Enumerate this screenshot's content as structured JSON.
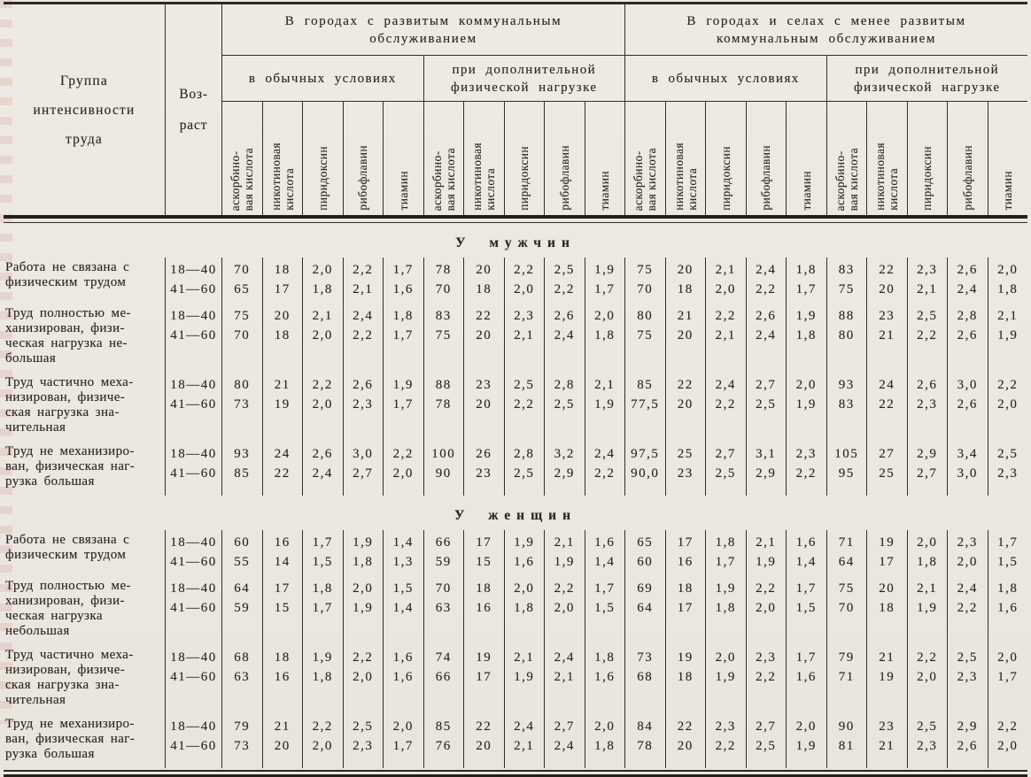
{
  "page": {
    "paper_color": "#ece8e1",
    "ink_color": "#2e2a24"
  },
  "table": {
    "header": {
      "group_column_title": "Группа\nинтенсивности\nтруда",
      "age_column_title": "Воз-\nраст",
      "groups": [
        {
          "title": "В городах с развитым коммунальным\nобслуживанием",
          "subgroups": [
            "в обычных условиях",
            "при дополнительной\nфизической нагрузке"
          ]
        },
        {
          "title": "В городах и селах с менее развитым\nкоммунальным обслуживанием",
          "subgroups": [
            "в обычных условиях",
            "при дополнительной\nфизической нагрузке"
          ]
        }
      ],
      "vitamins": [
        "аскорбино-\nвая кислота",
        "никотиновая\nкислота",
        "пиридоксин",
        "рибофлавин",
        "тиамин"
      ]
    },
    "sections": [
      {
        "title": "У мужчин",
        "rows": [
          {
            "label": "Работа не связана с\nфизическим трудом",
            "ages": [
              "18—40",
              "41—60"
            ],
            "values": [
              [
                "70",
                "18",
                "2,0",
                "2,2",
                "1,7",
                "78",
                "20",
                "2,2",
                "2,5",
                "1,9",
                "75",
                "20",
                "2,1",
                "2,4",
                "1,8",
                "83",
                "22",
                "2,3",
                "2,6",
                "2,0"
              ],
              [
                "65",
                "17",
                "1,8",
                "2,1",
                "1,6",
                "70",
                "18",
                "2,0",
                "2,2",
                "1,7",
                "70",
                "18",
                "2,0",
                "2,2",
                "1,7",
                "75",
                "20",
                "2,1",
                "2,4",
                "1,8"
              ]
            ]
          },
          {
            "label": "Труд полностью ме-\nханизирован, физи-\nческая нагрузка не-\nбольшая",
            "ages": [
              "18—40",
              "41—60"
            ],
            "values": [
              [
                "75",
                "20",
                "2,1",
                "2,4",
                "1,8",
                "83",
                "22",
                "2,3",
                "2,6",
                "2,0",
                "80",
                "21",
                "2,2",
                "2,6",
                "1,9",
                "88",
                "23",
                "2,5",
                "2,8",
                "2,1"
              ],
              [
                "70",
                "18",
                "2,0",
                "2,2",
                "1,7",
                "75",
                "20",
                "2,1",
                "2,4",
                "1,8",
                "75",
                "20",
                "2,1",
                "2,4",
                "1,8",
                "80",
                "21",
                "2,2",
                "2,6",
                "1,9"
              ]
            ]
          },
          {
            "label": "Труд частично меха-\nнизирован, физиче-\nская нагрузка зна-\nчительная",
            "ages": [
              "18—40",
              "41—60"
            ],
            "values": [
              [
                "80",
                "21",
                "2,2",
                "2,6",
                "1,9",
                "88",
                "23",
                "2,5",
                "2,8",
                "2,1",
                "85",
                "22",
                "2,4",
                "2,7",
                "2,0",
                "93",
                "24",
                "2,6",
                "3,0",
                "2,2"
              ],
              [
                "73",
                "19",
                "2,0",
                "2,3",
                "1,7",
                "78",
                "20",
                "2,2",
                "2,5",
                "1,9",
                "77,5",
                "20",
                "2,2",
                "2,5",
                "1,9",
                "83",
                "22",
                "2,3",
                "2,6",
                "2,0"
              ]
            ]
          },
          {
            "label": "Труд не механизиро-\nван, физическая наг-\nрузка большая",
            "ages": [
              "18—40",
              "41—60"
            ],
            "values": [
              [
                "93",
                "24",
                "2,6",
                "3,0",
                "2,2",
                "100",
                "26",
                "2,8",
                "3,2",
                "2,4",
                "97,5",
                "25",
                "2,7",
                "3,1",
                "2,3",
                "105",
                "27",
                "2,9",
                "3,4",
                "2,5"
              ],
              [
                "85",
                "22",
                "2,4",
                "2,7",
                "2,0",
                "90",
                "23",
                "2,5",
                "2,9",
                "2,2",
                "90,0",
                "23",
                "2,5",
                "2,9",
                "2,2",
                "95",
                "25",
                "2,7",
                "3,0",
                "2,3"
              ]
            ]
          }
        ]
      },
      {
        "title": "У женщин",
        "rows": [
          {
            "label": "Работа не связана с\nфизическим трудом",
            "ages": [
              "18—40",
              "41—60"
            ],
            "values": [
              [
                "60",
                "16",
                "1,7",
                "1,9",
                "1,4",
                "66",
                "17",
                "1,9",
                "2,1",
                "1,6",
                "65",
                "17",
                "1,8",
                "2,1",
                "1,6",
                "71",
                "19",
                "2,0",
                "2,3",
                "1,7"
              ],
              [
                "55",
                "14",
                "1,5",
                "1,8",
                "1,3",
                "59",
                "15",
                "1,6",
                "1,9",
                "1,4",
                "60",
                "16",
                "1,7",
                "1,9",
                "1,4",
                "64",
                "17",
                "1,8",
                "2,0",
                "1,5"
              ]
            ]
          },
          {
            "label": "Труд полностью ме-\nханизирован, физи-\nческая нагрузка\nнебольшая",
            "ages": [
              "18—40",
              "41—60"
            ],
            "values": [
              [
                "64",
                "17",
                "1,8",
                "2,0",
                "1,5",
                "70",
                "18",
                "2,0",
                "2,2",
                "1,7",
                "69",
                "18",
                "1,9",
                "2,2",
                "1,7",
                "75",
                "20",
                "2,1",
                "2,4",
                "1,8"
              ],
              [
                "59",
                "15",
                "1,7",
                "1,9",
                "1,4",
                "63",
                "16",
                "1,8",
                "2,0",
                "1,5",
                "64",
                "17",
                "1,8",
                "2,0",
                "1,5",
                "70",
                "18",
                "1,9",
                "2,2",
                "1,6"
              ]
            ]
          },
          {
            "label": "Труд частично меха-\nнизирован, физиче-\nская нагрузка зна-\nчительная",
            "ages": [
              "18—40",
              "41—60"
            ],
            "values": [
              [
                "68",
                "18",
                "1,9",
                "2,2",
                "1,6",
                "74",
                "19",
                "2,1",
                "2,4",
                "1,8",
                "73",
                "19",
                "2,0",
                "2,3",
                "1,7",
                "79",
                "21",
                "2,2",
                "2,5",
                "2,0"
              ],
              [
                "63",
                "16",
                "1,8",
                "2,0",
                "1,6",
                "66",
                "17",
                "1,9",
                "2,1",
                "1,6",
                "68",
                "18",
                "1,9",
                "2,2",
                "1,6",
                "71",
                "19",
                "2,0",
                "2,3",
                "1,7"
              ]
            ]
          },
          {
            "label": "Труд не механизиро-\nван, физическая наг-\nрузка большая",
            "ages": [
              "18—40",
              "41—60"
            ],
            "values": [
              [
                "79",
                "21",
                "2,2",
                "2,5",
                "2,0",
                "85",
                "22",
                "2,4",
                "2,7",
                "2,0",
                "84",
                "22",
                "2,3",
                "2,7",
                "2,0",
                "90",
                "23",
                "2,5",
                "2,9",
                "2,2"
              ],
              [
                "73",
                "20",
                "2,0",
                "2,3",
                "1,7",
                "76",
                "20",
                "2,1",
                "2,4",
                "1,8",
                "78",
                "20",
                "2,2",
                "2,5",
                "1,9",
                "81",
                "21",
                "2,3",
                "2,6",
                "2,0"
              ]
            ]
          }
        ]
      }
    ]
  }
}
